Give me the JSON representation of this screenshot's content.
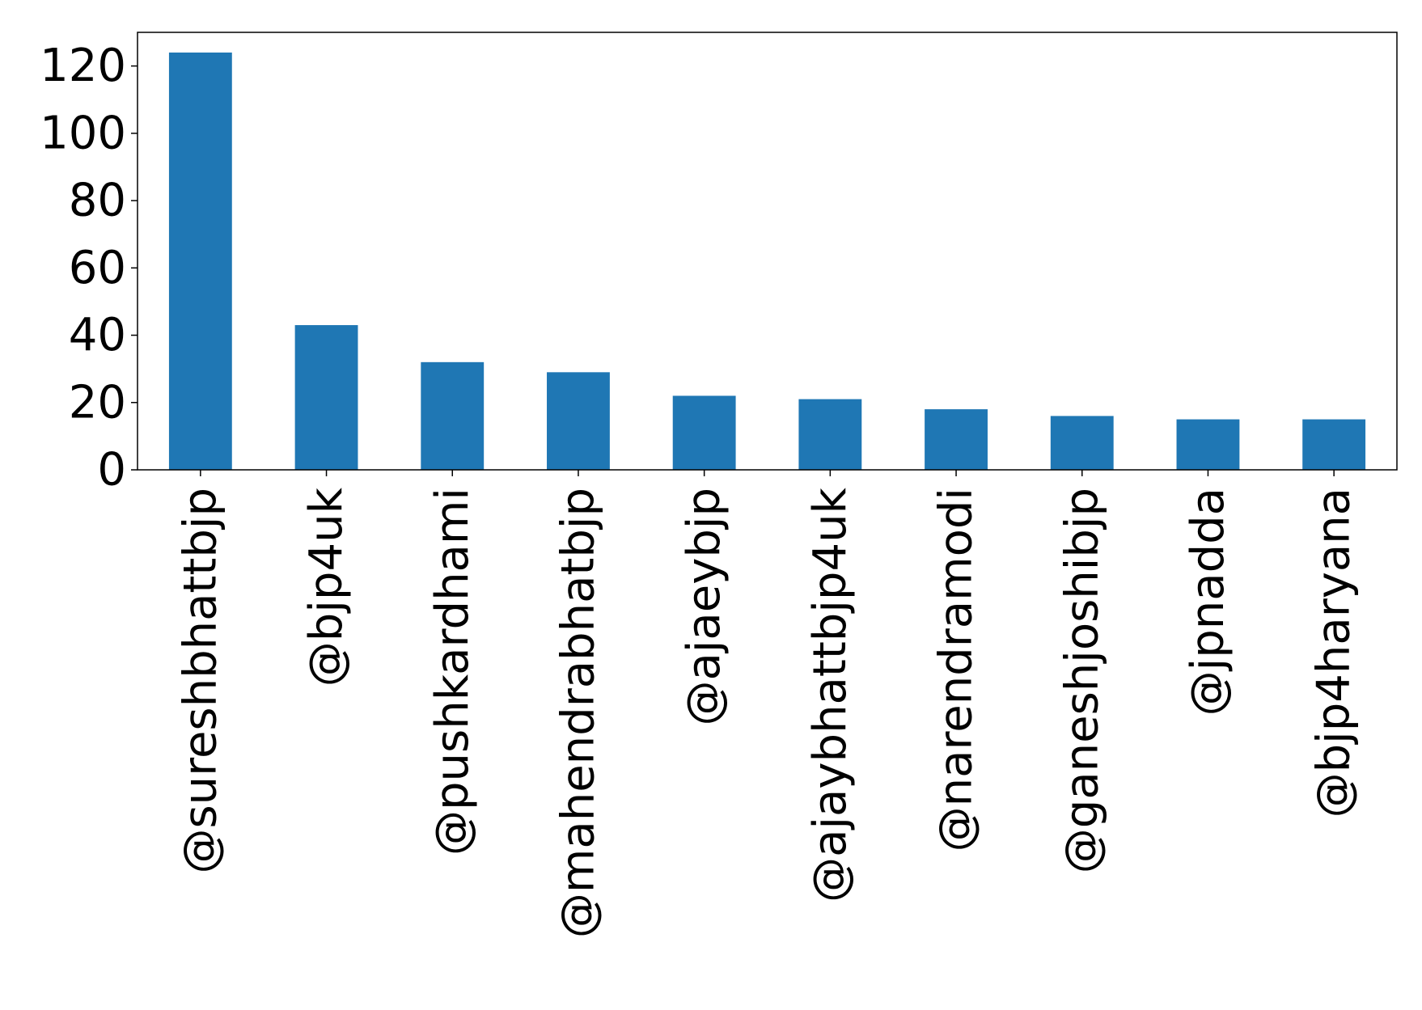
{
  "chart_data": {
    "type": "bar",
    "categories": [
      "@sureshbhattbjp",
      "@bjp4uk",
      "@pushkardhami",
      "@mahendrabhatbjp",
      "@ajaeybjp",
      "@ajaybhattbjp4uk",
      "@narendramodi",
      "@ganeshjoshibjp",
      "@jpnadda",
      "@bjp4haryana"
    ],
    "values": [
      124,
      43,
      32,
      29,
      22,
      21,
      18,
      16,
      15,
      15
    ],
    "title": "",
    "xlabel": "",
    "ylabel": "",
    "ylim": [
      0,
      130
    ],
    "yticks": [
      "0",
      "20",
      "40",
      "60",
      "80",
      "100",
      "120"
    ],
    "grid": false,
    "bar_color": "#1f77b4"
  }
}
